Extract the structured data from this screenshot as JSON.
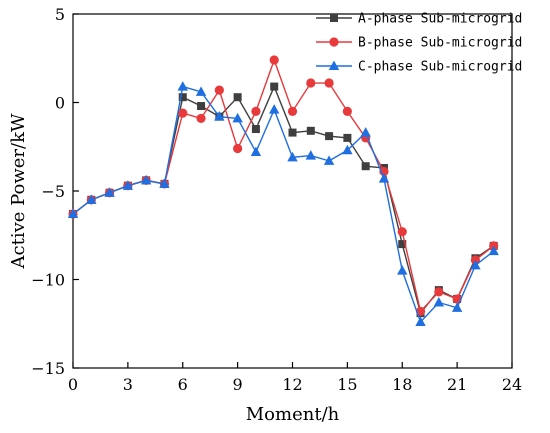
{
  "chart_data": {
    "type": "line",
    "xlabel": "Moment/h",
    "ylabel": "Active Power/kW",
    "xlim": [
      0,
      24
    ],
    "ylim": [
      -15,
      5
    ],
    "xticks": [
      0,
      3,
      6,
      9,
      12,
      15,
      18,
      21,
      24
    ],
    "yticks": [
      5,
      0,
      -5,
      -10,
      -15
    ],
    "grid": false,
    "legend_position": "top-right",
    "x": [
      0,
      1,
      2,
      3,
      4,
      5,
      6,
      7,
      8,
      9,
      10,
      11,
      12,
      13,
      14,
      15,
      16,
      17,
      18,
      19,
      20,
      21,
      22,
      23
    ],
    "series": [
      {
        "name": "A-phase Sub-microgrid",
        "color": "#3f3f3f",
        "marker": "square",
        "values": [
          -6.3,
          -5.5,
          -5.1,
          -4.7,
          -4.4,
          -4.6,
          0.3,
          -0.2,
          -0.8,
          0.3,
          -1.5,
          0.9,
          -1.7,
          -1.6,
          -1.9,
          -2.0,
          -3.6,
          -3.7,
          -8.0,
          -11.9,
          -10.6,
          -11.1,
          -8.8,
          -8.1
        ]
      },
      {
        "name": "B-phase Sub-microgrid",
        "color": "#e8393b",
        "marker": "circle",
        "values": [
          -6.3,
          -5.5,
          -5.1,
          -4.7,
          -4.4,
          -4.6,
          -0.6,
          -0.9,
          0.7,
          -2.6,
          -0.5,
          2.4,
          -0.5,
          1.1,
          1.1,
          -0.5,
          -2.0,
          -3.9,
          -7.3,
          -11.8,
          -10.7,
          -11.1,
          -8.9,
          -8.1
        ]
      },
      {
        "name": "C-phase Sub-microgrid",
        "color": "#1f6fe0",
        "marker": "triangle",
        "values": [
          -6.3,
          -5.5,
          -5.1,
          -4.7,
          -4.4,
          -4.6,
          0.9,
          0.6,
          -0.8,
          -0.9,
          -2.8,
          -0.4,
          -3.1,
          -3.0,
          -3.3,
          -2.7,
          -1.7,
          -4.3,
          -9.5,
          -12.4,
          -11.3,
          -11.6,
          -9.2,
          -8.4
        ]
      }
    ]
  }
}
